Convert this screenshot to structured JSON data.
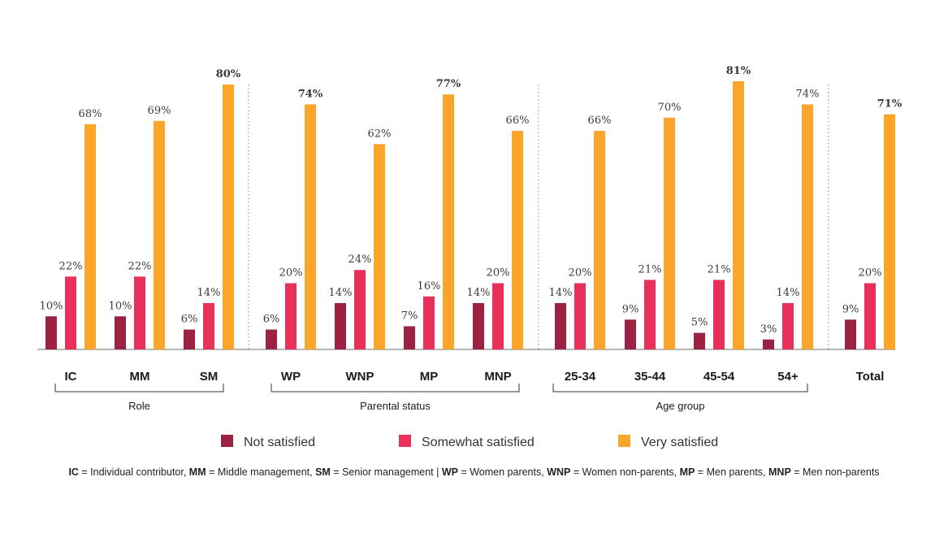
{
  "chart_data": {
    "type": "bar",
    "categories": [
      "IC",
      "MM",
      "SM",
      "WP",
      "WNP",
      "MP",
      "MNP",
      "25-34",
      "35-44",
      "45-54",
      "54+",
      "Total"
    ],
    "groups": [
      {
        "label": "Role",
        "categories": [
          "IC",
          "MM",
          "SM"
        ]
      },
      {
        "label": "Parental status",
        "categories": [
          "WP",
          "WNP",
          "MP",
          "MNP"
        ]
      },
      {
        "label": "Age group",
        "categories": [
          "25-34",
          "35-44",
          "45-54",
          "54+"
        ]
      }
    ],
    "series": [
      {
        "name": "Not satisfied",
        "color": "#9b2242",
        "values": [
          10,
          10,
          6,
          6,
          14,
          7,
          14,
          14,
          9,
          5,
          3,
          9
        ]
      },
      {
        "name": "Somewhat satisfied",
        "color": "#e8305a",
        "values": [
          22,
          22,
          14,
          20,
          24,
          16,
          20,
          20,
          21,
          21,
          14,
          20
        ]
      },
      {
        "name": "Very satisfied",
        "color": "#fba52a",
        "values": [
          68,
          69,
          80,
          74,
          62,
          77,
          66,
          66,
          70,
          81,
          74,
          71
        ]
      }
    ],
    "value_labels": {
      "Not satisfied": [
        "10%",
        "10%",
        "6%",
        "6%",
        "14%",
        "7%",
        "14%",
        "14%",
        "9%",
        "5%",
        "3%",
        "9%"
      ],
      "Somewhat satisfied": [
        "22%",
        "22%",
        "14%",
        "20%",
        "24%",
        "16%",
        "20%",
        "20%",
        "21%",
        "21%",
        "14%",
        "20%"
      ],
      "Very satisfied": [
        "68%",
        "69%",
        "80%",
        "74%",
        "62%",
        "77%",
        "66%",
        "66%",
        "70%",
        "81%",
        "74%",
        "71%"
      ]
    },
    "highlighted": [
      2,
      3,
      5,
      9,
      11
    ],
    "ylim": [
      0,
      85
    ],
    "grid": false,
    "legend": "bottom",
    "footnote": [
      {
        "b": "IC",
        "t": " = Individual contributor,  "
      },
      {
        "b": "MM",
        "t": " = Middle management, "
      },
      {
        "b": "SM",
        "t": " = Senior management | "
      },
      {
        "b": "WP",
        "t": " = Women parents, "
      },
      {
        "b": "WNP",
        "t": " = Women non-parents, "
      },
      {
        "b": "MP",
        "t": " = Men parents, "
      },
      {
        "b": "MNP",
        "t": " = Men non-parents"
      }
    ]
  }
}
